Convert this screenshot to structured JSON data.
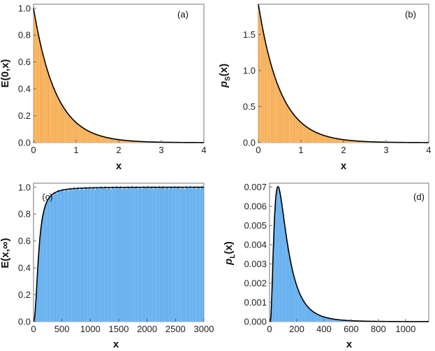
{
  "chart_data": [
    {
      "type": "bar",
      "panel_label": "(a)",
      "xlabel": "x",
      "ylabel": "E(0,x)",
      "xlim": [
        0,
        4
      ],
      "ylim": [
        0,
        1.03
      ],
      "xticks": [
        "0",
        "1",
        "2",
        "3",
        "4"
      ],
      "yticks": [
        "0.0",
        "0.2",
        "0.4",
        "0.6",
        "0.8",
        "1.0"
      ],
      "bar_color": "#F6A94A",
      "curve": {
        "form": "exp_decay",
        "amplitude": 1.0,
        "rate": 1.9
      },
      "bins": {
        "start": 0,
        "end": 4,
        "count": 110
      }
    },
    {
      "type": "bar",
      "panel_label": "(b)",
      "xlabel": "x",
      "ylabel_main": "p",
      "ylabel_sub": "S",
      "ylabel_tail": "(x)",
      "xlim": [
        0,
        4
      ],
      "ylim": [
        0,
        1.92
      ],
      "xticks": [
        "0",
        "1",
        "2",
        "3",
        "4"
      ],
      "yticks": [
        "0.0",
        "0.5",
        "1.0",
        "1.5"
      ],
      "bar_color": "#F6A94A",
      "curve": {
        "form": "exp_decay",
        "amplitude": 1.92,
        "rate": 1.92
      },
      "bins": {
        "start": 0,
        "end": 4,
        "count": 110
      }
    },
    {
      "type": "bar",
      "panel_label": "(c)",
      "xlabel": "x",
      "ylabel": "E(x,∞)",
      "xlim": [
        0,
        3000
      ],
      "ylim": [
        0,
        1.03
      ],
      "xticks": [
        "0",
        "500",
        "1000",
        "1500",
        "2000",
        "2500",
        "3000"
      ],
      "yticks": [
        "0.0",
        "0.2",
        "0.4",
        "0.6",
        "0.8",
        "1.0"
      ],
      "bar_color": "#55A8EE",
      "curve": {
        "form": "saturation",
        "midpoint": 90,
        "steepness": 2.2
      },
      "bins": {
        "start": 0,
        "end": 3000,
        "count": 120
      }
    },
    {
      "type": "bar",
      "panel_label": "(d)",
      "xlabel": "x",
      "ylabel_main": "p",
      "ylabel_sub": "L",
      "ylabel_tail": "(x)",
      "xlim": [
        0,
        1170
      ],
      "ylim": [
        0,
        0.0072
      ],
      "xticks": [
        "0",
        "200",
        "400",
        "600",
        "800",
        "1000"
      ],
      "yticks": [
        "0.000",
        "0.001",
        "0.002",
        "0.003",
        "0.004",
        "0.005",
        "0.006",
        "0.007"
      ],
      "bar_color": "#55A8EE",
      "curve": {
        "form": "lognormal",
        "mode": 62,
        "peak": 0.00702,
        "sigma": 0.72
      },
      "bins": {
        "start": 0,
        "end": 1170,
        "count": 110
      }
    }
  ]
}
